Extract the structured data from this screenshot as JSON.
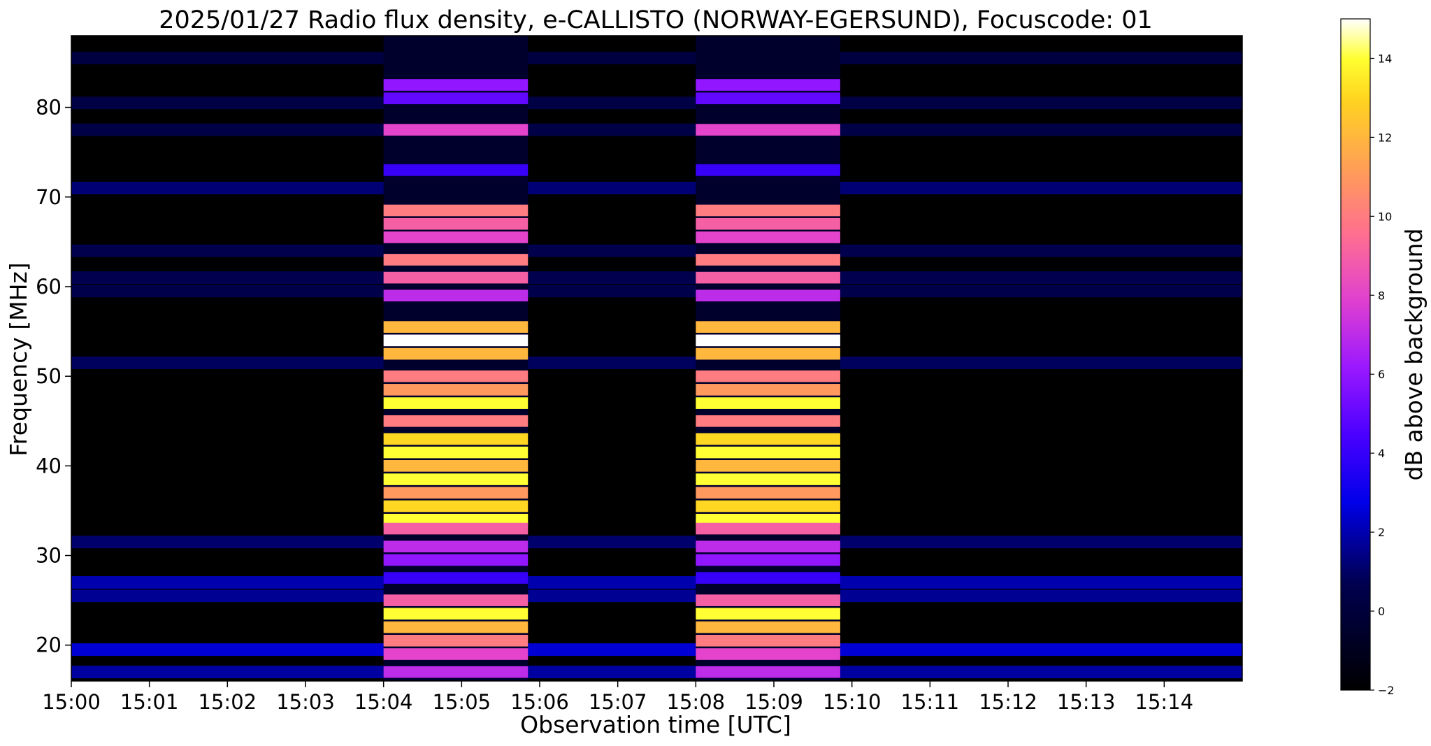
{
  "chart_data": {
    "type": "heatmap",
    "title": "2025/01/27  Radio flux density, e-CALLISTO (NORWAY-EGERSUND), Focuscode: 01",
    "xlabel": "Observation time [UTC]",
    "ylabel": "Frequency [MHz]",
    "colorbar_label": "dB above background",
    "colormap": "gnuplot2",
    "x_ticks": [
      "15:00",
      "15:01",
      "15:02",
      "15:03",
      "15:04",
      "15:05",
      "15:06",
      "15:07",
      "15:08",
      "15:09",
      "15:10",
      "15:11",
      "15:12",
      "15:13",
      "15:14"
    ],
    "y_ticks": [
      20,
      30,
      40,
      50,
      60,
      70,
      80
    ],
    "xlim": [
      "15:00:00",
      "15:15:00"
    ],
    "ylim": [
      16,
      88
    ],
    "colorbar_ticks": [
      -2,
      0,
      2,
      4,
      6,
      8,
      10,
      12,
      14
    ],
    "clim": [
      -2,
      15
    ],
    "calibration_bursts": [
      {
        "start": "15:04:00",
        "end": "15:05:51"
      },
      {
        "start": "15:08:00",
        "end": "15:09:51"
      }
    ],
    "background_bands_mhz": [
      {
        "center": 85.5,
        "level_db": 0.2
      },
      {
        "center": 80.5,
        "level_db": 0.3
      },
      {
        "center": 77.5,
        "level_db": 0.4
      },
      {
        "center": 71.0,
        "level_db": 1.2
      },
      {
        "center": 64.0,
        "level_db": 0.6
      },
      {
        "center": 61.0,
        "level_db": 0.7
      },
      {
        "center": 59.5,
        "level_db": 0.5
      },
      {
        "center": 51.5,
        "level_db": 0.9
      },
      {
        "center": 31.5,
        "level_db": 1.1
      },
      {
        "center": 27.0,
        "level_db": 2.0
      },
      {
        "center": 25.5,
        "level_db": 1.6
      },
      {
        "center": 19.5,
        "level_db": 2.5
      },
      {
        "center": 17.0,
        "level_db": 1.8
      }
    ],
    "burst_spectrum_mhz": [
      {
        "center": 82.5,
        "level_db": 6
      },
      {
        "center": 81.0,
        "level_db": 5
      },
      {
        "center": 77.5,
        "level_db": 8
      },
      {
        "center": 73.0,
        "level_db": 4
      },
      {
        "center": 68.5,
        "level_db": 10
      },
      {
        "center": 67.0,
        "level_db": 9
      },
      {
        "center": 65.5,
        "level_db": 8
      },
      {
        "center": 63.0,
        "level_db": 10
      },
      {
        "center": 61.0,
        "level_db": 9
      },
      {
        "center": 59.0,
        "level_db": 7
      },
      {
        "center": 55.5,
        "level_db": 12
      },
      {
        "center": 54.0,
        "level_db": 15
      },
      {
        "center": 52.5,
        "level_db": 12
      },
      {
        "center": 50.0,
        "level_db": 10
      },
      {
        "center": 48.5,
        "level_db": 11
      },
      {
        "center": 47.0,
        "level_db": 14
      },
      {
        "center": 45.0,
        "level_db": 10
      },
      {
        "center": 43.0,
        "level_db": 13
      },
      {
        "center": 41.5,
        "level_db": 14
      },
      {
        "center": 40.0,
        "level_db": 12
      },
      {
        "center": 38.5,
        "level_db": 14
      },
      {
        "center": 37.0,
        "level_db": 11
      },
      {
        "center": 35.5,
        "level_db": 13
      },
      {
        "center": 34.0,
        "level_db": 14
      },
      {
        "center": 33.0,
        "level_db": 9
      },
      {
        "center": 31.0,
        "level_db": 7
      },
      {
        "center": 29.5,
        "level_db": 6
      },
      {
        "center": 27.5,
        "level_db": 4
      },
      {
        "center": 25.0,
        "level_db": 9
      },
      {
        "center": 23.5,
        "level_db": 14
      },
      {
        "center": 22.0,
        "level_db": 12
      },
      {
        "center": 20.5,
        "level_db": 10
      },
      {
        "center": 19.0,
        "level_db": 8
      },
      {
        "center": 17.0,
        "level_db": 7
      }
    ]
  }
}
